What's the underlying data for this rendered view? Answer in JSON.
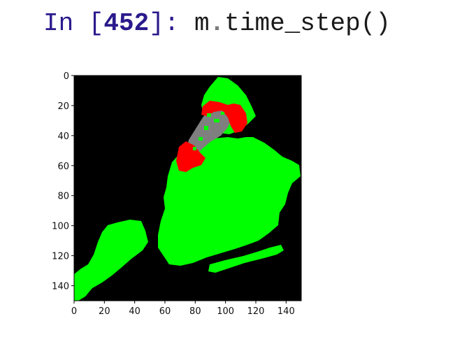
{
  "cell": {
    "prompt_prefix": "In [",
    "execution_count": "452",
    "prompt_suffix": "]: ",
    "code_object": "m",
    "code_dot": ".",
    "code_call": "time_step()"
  },
  "output_image": {
    "axes": {
      "x_ticks": [
        "0",
        "20",
        "40",
        "60",
        "80",
        "100",
        "120",
        "140"
      ],
      "y_ticks": [
        "0",
        "20",
        "40",
        "60",
        "80",
        "100",
        "120",
        "140"
      ],
      "x_range": [
        0,
        150
      ],
      "y_range": [
        0,
        150
      ]
    },
    "colors": {
      "background": "#000000",
      "healthy": "#00ff00",
      "infected": "#ff0000",
      "recovered": "#7f7f7f"
    }
  }
}
